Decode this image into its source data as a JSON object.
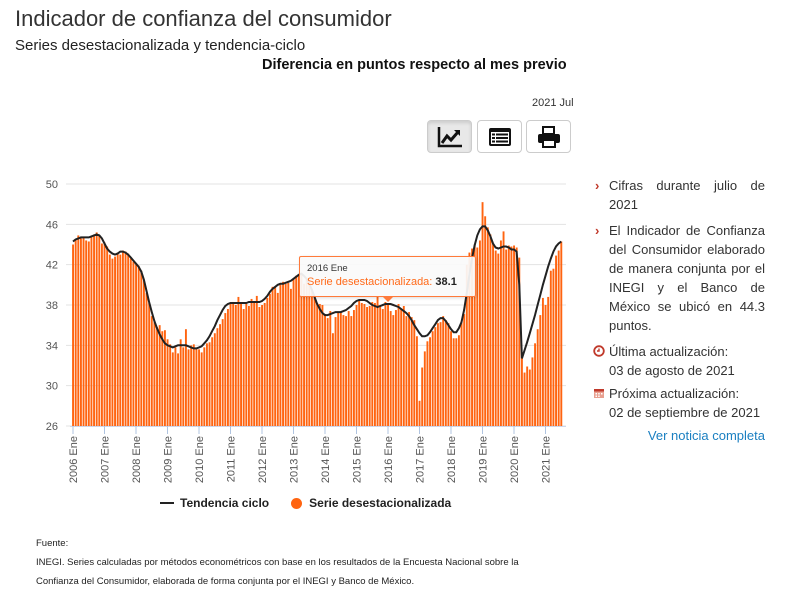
{
  "header": {
    "title": "Indicador de confianza del consumidor",
    "subtitle": "Series desestacionalizada y tendencia-ciclo",
    "chart_title": "Diferencia en puntos respecto al mes previo",
    "period": "2021 Jul"
  },
  "toolbar": [
    {
      "icon": "line-chart-icon",
      "active": true
    },
    {
      "icon": "table-icon",
      "active": false
    },
    {
      "icon": "print-icon",
      "active": false
    }
  ],
  "panel": {
    "bullets": [
      "Cifras durante julio de 2021",
      "El Indicador de Confianza del Consumidor elaborado de manera conjunta por el INEGI y el Banco de México se ubicó en 44.3 puntos."
    ],
    "last_update_label": "Última actualización:",
    "last_update": "03 de agosto de 2021",
    "next_update_label": "Próxima actualización:",
    "next_update": "02 de septiembre de 2021",
    "link": "Ver noticia completa"
  },
  "tooltip": {
    "date": "2016 Ene",
    "series": "Serie desestacionalizada:",
    "value": "38.1"
  },
  "footer": {
    "label": "Fuente:",
    "line1": "INEGI. Series calculadas por métodos econométricos con base en los resultados de la Encuesta Nacional sobre la",
    "line2": "Confianza del Consumidor, elaborada de forma conjunta por el INEGI y Banco de México."
  },
  "colors": {
    "bars": "#ff6410",
    "trend": "#222222",
    "accent": "#c0392b",
    "link": "#1a7fc1"
  },
  "chart_data": {
    "type": "bar",
    "title": "Diferencia en puntos respecto al mes previo",
    "start": "2006 Ene",
    "end": "2021 Jul",
    "frequency": "monthly",
    "ylim": [
      26,
      50
    ],
    "yticks": [
      "26",
      "30",
      "34",
      "38",
      "42",
      "46",
      "50"
    ],
    "xticks": [
      "2006 Ene",
      "2007 Ene",
      "2008 Ene",
      "2009 Ene",
      "2010 Ene",
      "2011 Ene",
      "2012 Ene",
      "2013 Ene",
      "2014 Ene",
      "2015 Ene",
      "2016 Ene",
      "2017 Ene",
      "2018 Ene",
      "2019 Ene",
      "2020 Ene",
      "2021 Ene"
    ],
    "legend": {
      "position": "bottom",
      "items": [
        "Tendencia ciclo",
        "Serie desestacionalizada"
      ]
    },
    "series": [
      {
        "name": "Serie desestacionalizada",
        "type": "bar",
        "values": [
          44.0,
          44.5,
          44.9,
          44.6,
          44.7,
          44.4,
          44.3,
          44.8,
          45.0,
          45.2,
          44.9,
          44.1,
          44.2,
          43.8,
          43.0,
          42.6,
          42.8,
          43.2,
          43.0,
          43.4,
          43.3,
          43.1,
          42.6,
          42.3,
          42.0,
          41.9,
          41.4,
          40.5,
          39.2,
          38.2,
          36.9,
          36.3,
          35.8,
          36.0,
          35.4,
          35.5,
          34.6,
          34.1,
          33.3,
          33.8,
          33.2,
          34.6,
          33.8,
          35.6,
          33.6,
          34.0,
          34.1,
          33.7,
          33.6,
          33.3,
          33.8,
          34.2,
          34.3,
          34.8,
          35.2,
          35.7,
          36.1,
          36.6,
          37.2,
          37.6,
          38.1,
          38.3,
          38.0,
          38.8,
          38.2,
          37.6,
          38.1,
          37.9,
          38.6,
          38.4,
          38.9,
          37.8,
          38.0,
          38.2,
          38.7,
          39.1,
          39.8,
          39.8,
          39.2,
          40.0,
          40.3,
          40.1,
          40.2,
          39.6,
          40.6,
          40.9,
          41.0,
          41.2,
          40.1,
          40.5,
          40.3,
          39.6,
          38.9,
          38.2,
          38.1,
          38.0,
          37.1,
          36.7,
          37.4,
          35.2,
          36.8,
          37.3,
          37.3,
          37.0,
          36.9,
          37.4,
          36.9,
          37.5,
          38.0,
          38.4,
          38.2,
          38.1,
          37.8,
          37.9,
          38.3,
          38.2,
          38.9,
          37.9,
          37.6,
          38.3,
          38.1,
          37.4,
          37.0,
          37.5,
          38.1,
          37.6,
          37.9,
          36.9,
          37.3,
          36.8,
          36.5,
          34.9,
          28.5,
          31.8,
          33.4,
          34.4,
          34.8,
          35.4,
          35.8,
          36.2,
          36.3,
          36.9,
          36.5,
          36.2,
          35.4,
          34.7,
          34.7,
          35.0,
          36.4,
          37.1,
          42.0,
          43.2,
          43.6,
          44.0,
          43.7,
          44.4,
          48.2,
          46.8,
          45.7,
          45.0,
          44.1,
          43.4,
          43.1,
          44.4,
          45.3,
          43.5,
          43.9,
          43.8,
          43.9,
          43.7,
          42.7,
          33.3,
          31.3,
          31.9,
          31.6,
          32.8,
          34.2,
          35.6,
          37.0,
          38.7,
          38.0,
          38.8,
          41.4,
          41.6,
          42.9,
          43.4,
          44.3
        ]
      },
      {
        "name": "Tendencia ciclo",
        "type": "line",
        "values": [
          44.3,
          44.5,
          44.6,
          44.7,
          44.7,
          44.7,
          44.7,
          44.8,
          44.9,
          45.0,
          44.9,
          44.6,
          44.1,
          43.6,
          43.3,
          43.1,
          43.0,
          43.1,
          43.3,
          43.3,
          43.2,
          43.0,
          42.7,
          42.4,
          42.1,
          41.8,
          41.3,
          40.5,
          39.4,
          38.3,
          37.3,
          36.4,
          35.7,
          35.1,
          34.6,
          34.2,
          34.0,
          33.9,
          33.8,
          33.9,
          34.0,
          34.0,
          34.0,
          34.0,
          33.9,
          33.8,
          33.7,
          33.7,
          33.8,
          33.9,
          34.2,
          34.5,
          34.9,
          35.4,
          35.9,
          36.5,
          37.0,
          37.5,
          37.9,
          38.1,
          38.2,
          38.2,
          38.2,
          38.2,
          38.2,
          38.2,
          38.2,
          38.3,
          38.3,
          38.3,
          38.3,
          38.3,
          38.4,
          38.6,
          38.9,
          39.3,
          39.6,
          39.8,
          40.0,
          40.1,
          40.1,
          40.2,
          40.3,
          40.4,
          40.6,
          40.8,
          41.0,
          41.1,
          40.9,
          40.6,
          40.1,
          39.5,
          38.8,
          38.1,
          37.6,
          37.2,
          37.0,
          37.0,
          37.1,
          37.2,
          37.3,
          37.3,
          37.3,
          37.4,
          37.5,
          37.7,
          37.9,
          38.2,
          38.4,
          38.5,
          38.5,
          38.5,
          38.4,
          38.2,
          38.0,
          37.9,
          37.8,
          37.9,
          38.0,
          38.1,
          38.1,
          38.1,
          38.0,
          37.9,
          37.8,
          37.6,
          37.4,
          37.2,
          36.9,
          36.5,
          36.0,
          35.6,
          35.2,
          34.9,
          34.9,
          35.0,
          35.3,
          35.7,
          36.1,
          36.5,
          36.7,
          36.7,
          36.4,
          36.0,
          35.6,
          35.3,
          35.3,
          35.7,
          36.3,
          37.5,
          39.2,
          41.0,
          42.6,
          43.9,
          44.9,
          45.5,
          45.8,
          45.8,
          45.4,
          44.8,
          44.1,
          43.7,
          43.6,
          43.7,
          43.8,
          43.8,
          43.7,
          43.5,
          43.5,
          43.3,
          40.0,
          32.7,
          33.5,
          34.3,
          35.2,
          36.1,
          37.0,
          38.0,
          39.0,
          40.0,
          40.9,
          41.8,
          42.6,
          43.3,
          43.8,
          44.1,
          44.3
        ]
      }
    ]
  }
}
